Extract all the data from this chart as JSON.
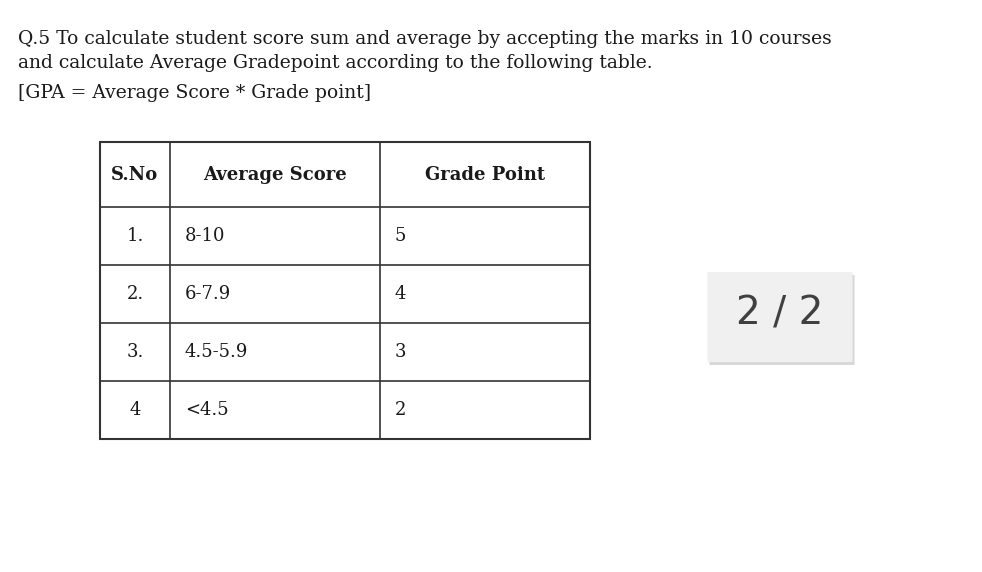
{
  "title_line1": "Q.5 To calculate student score sum and average by accepting the marks in 10 courses",
  "title_line2": "and calculate Average Gradepoint according to the following table.",
  "formula": "[GPA = Average Score * Grade point]",
  "badge_text": "2 / 2",
  "table_headers": [
    "S.No",
    "Average Score",
    "Grade Point"
  ],
  "table_rows": [
    [
      "1.",
      "8-10",
      "5"
    ],
    [
      "2.",
      "6-7.9",
      "4"
    ],
    [
      "3.",
      "4.5-5.9",
      "3"
    ],
    [
      "4",
      "<4.5",
      "2"
    ]
  ],
  "bg_color": "#ffffff",
  "text_color": "#1a1a1a",
  "title_fontsize": 13.5,
  "formula_fontsize": 13.5,
  "header_fontsize": 13,
  "cell_fontsize": 13,
  "badge_fontsize": 28,
  "badge_color": "#404040"
}
